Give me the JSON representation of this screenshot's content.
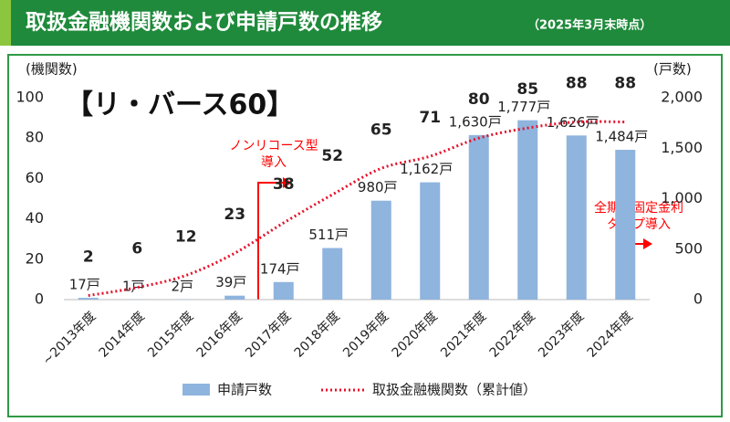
{
  "chart_data": {
    "type": "bar-line",
    "title": "取扱金融機関数および申請戸数の推移",
    "subtitle": "（2025年3月末時点）",
    "logo": "【リ・バース60】",
    "y_label": "(機関数)",
    "y2_label": "(戸数)",
    "categories": [
      "~2013年度",
      "2014年度",
      "2015年度",
      "2016年度",
      "2017年度",
      "2018年度",
      "2019年度",
      "2020年度",
      "2021年度",
      "2022年度",
      "2023年度",
      "2024年度"
    ],
    "series": [
      {
        "name": "申請戸数",
        "type": "bar",
        "axis": "y2",
        "color": "#8fb4de",
        "values": [
          17,
          1,
          2,
          39,
          174,
          511,
          980,
          1162,
          1630,
          1777,
          1626,
          1484
        ],
        "value_labels": [
          "17戸",
          "1戸",
          "2戸",
          "39戸",
          "174戸",
          "511戸",
          "980戸",
          "1,162戸",
          "1,630戸",
          "1,777戸",
          "1,626戸",
          "1,484戸"
        ]
      },
      {
        "name": "取扱金融機関数（累計値）",
        "type": "line",
        "color": "#e5132b",
        "values": [
          2,
          6,
          12,
          23,
          38,
          52,
          65,
          71,
          80,
          85,
          88,
          88
        ]
      }
    ],
    "ylim": [
      0,
      100
    ],
    "yticks": [
      0,
      20,
      40,
      60,
      80,
      100
    ],
    "y2lim": [
      0,
      2000
    ],
    "y2ticks": [
      0,
      500,
      {
        "value": 1000,
        "label": "1,000"
      },
      {
        "value": 1500,
        "label": "1,500"
      },
      {
        "value": 2000,
        "label": "2,000"
      }
    ],
    "annotations": [
      [
        "ノンリコース型",
        "導入"
      ],
      [
        "全期間固定金利",
        "タイプ導入"
      ]
    ]
  }
}
